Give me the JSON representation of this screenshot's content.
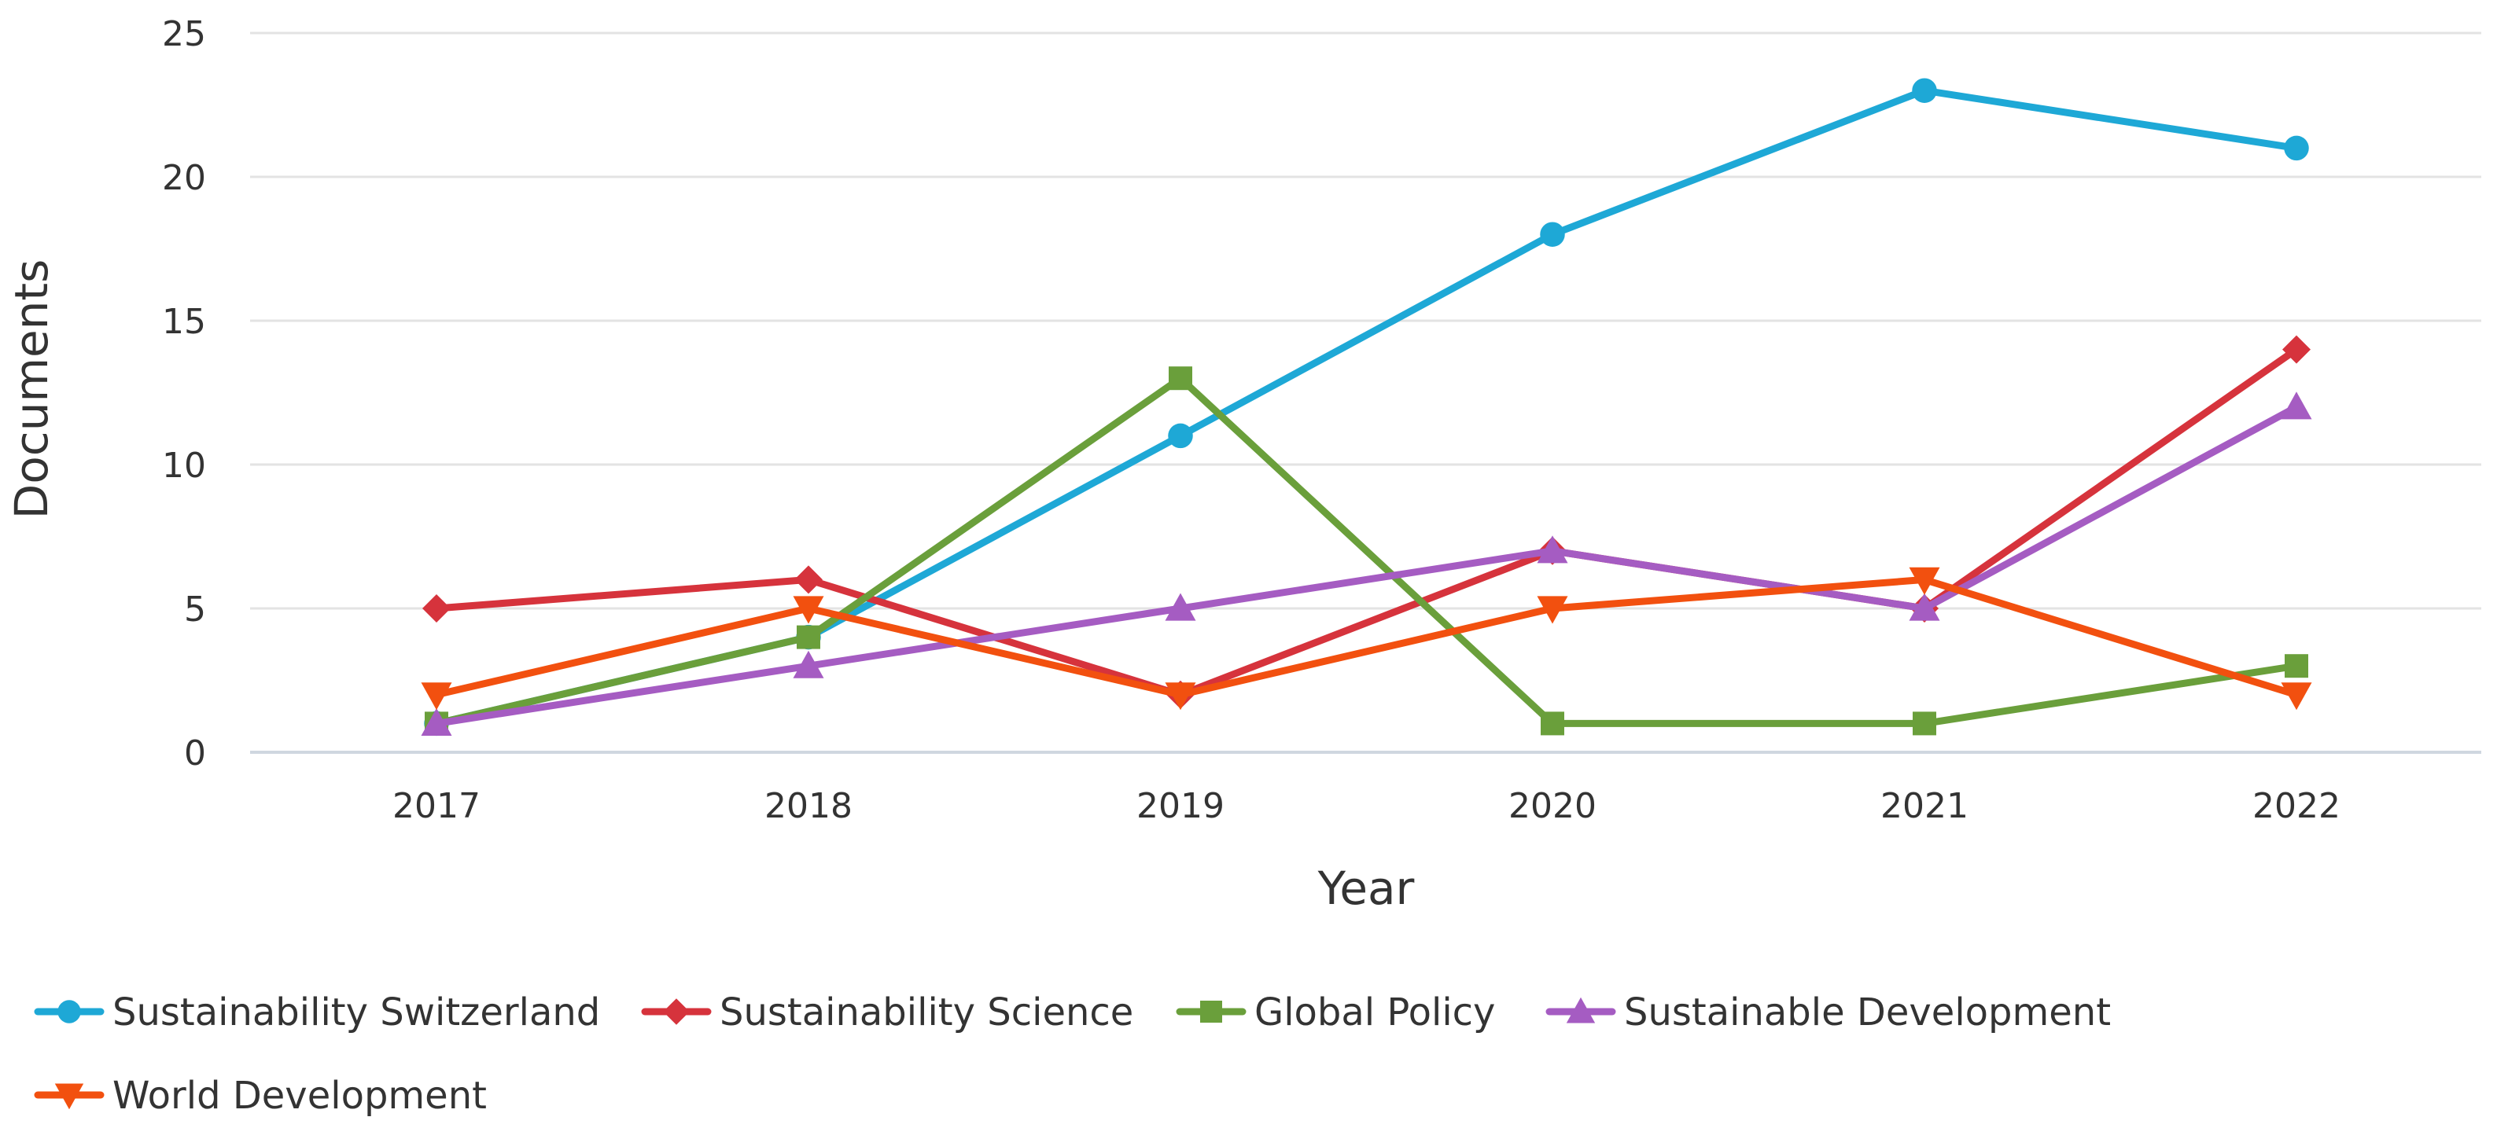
{
  "chart_data": {
    "type": "line",
    "title": "",
    "xlabel": "Year",
    "ylabel": "Documents",
    "categories": [
      "2017",
      "2018",
      "2019",
      "2020",
      "2021",
      "2022"
    ],
    "ylim": [
      0,
      25
    ],
    "yticks": [
      0,
      5,
      10,
      15,
      20,
      25
    ],
    "grid": true,
    "legend_position": "bottom",
    "series": [
      {
        "name": "Sustainability Switzerland",
        "color": "#1ea8d6",
        "marker": "circle",
        "values": [
          1,
          4,
          11,
          18,
          23,
          21
        ]
      },
      {
        "name": "Sustainability Science",
        "color": "#d6333c",
        "marker": "diamond",
        "values": [
          5,
          6,
          2,
          7,
          5,
          14
        ]
      },
      {
        "name": "Global Policy",
        "color": "#6a9f3b",
        "marker": "square",
        "values": [
          1,
          4,
          13,
          1,
          1,
          3
        ]
      },
      {
        "name": "Sustainable Development",
        "color": "#a55cc2",
        "marker": "triangle-up",
        "values": [
          1,
          3,
          5,
          7,
          5,
          12
        ]
      },
      {
        "name": "World Development",
        "color": "#f2500f",
        "marker": "triangle-down",
        "values": [
          2,
          5,
          2,
          5,
          6,
          2
        ]
      }
    ]
  }
}
